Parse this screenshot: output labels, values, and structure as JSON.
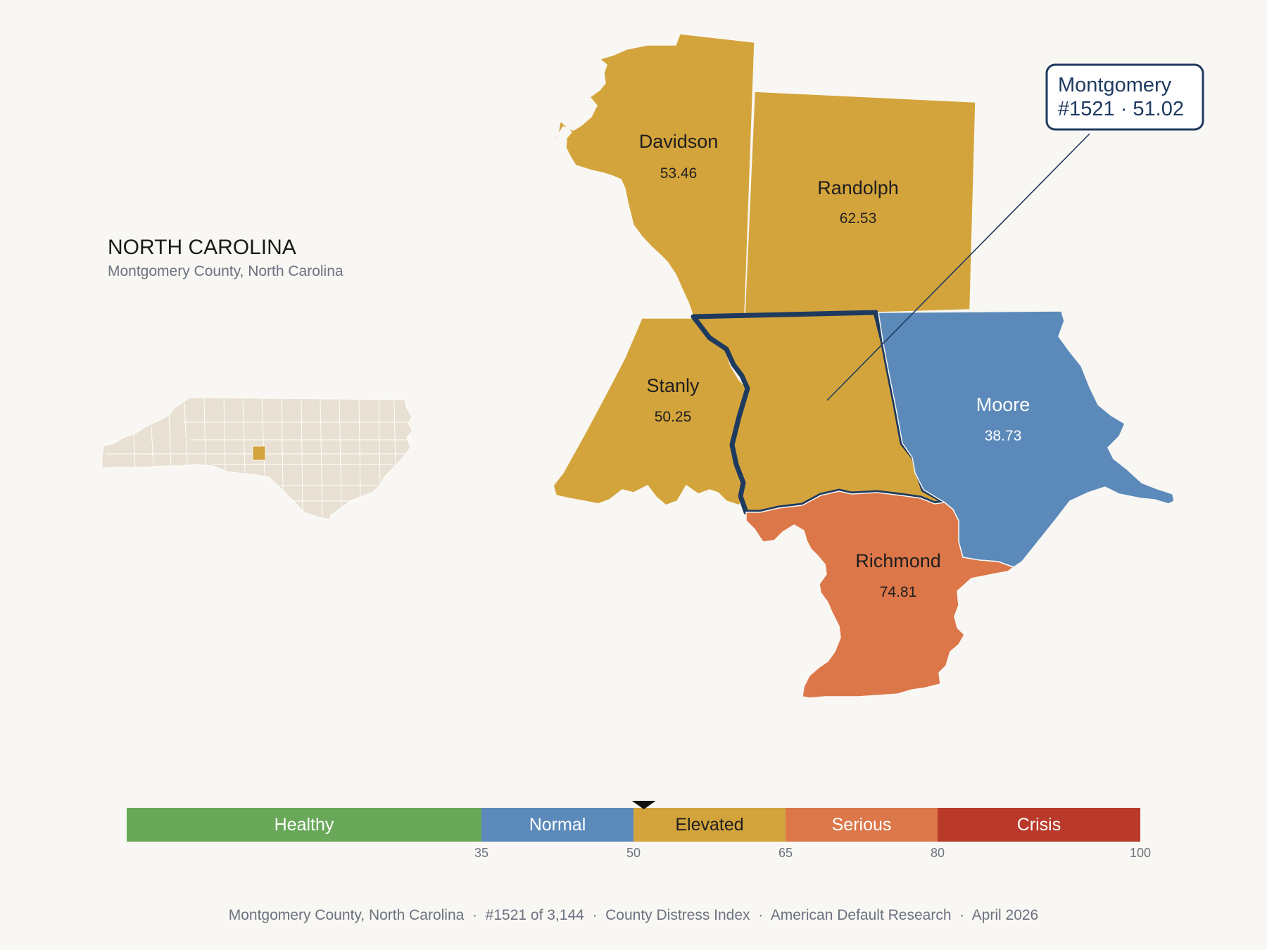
{
  "header": {
    "state": "NORTH CAROLINA",
    "subtitle": "Montgomery County, North Carolina"
  },
  "counties": [
    {
      "id": "davidson",
      "name": "Davidson",
      "value": "53.46",
      "fill": "#d4a43c"
    },
    {
      "id": "randolph",
      "name": "Randolph",
      "value": "62.53",
      "fill": "#d4a43c"
    },
    {
      "id": "stanly",
      "name": "Stanly",
      "value": "50.25",
      "fill": "#d4a43c"
    },
    {
      "id": "montgomery",
      "name": "Montgomery",
      "value": "51.02",
      "fill": "#d4a43c"
    },
    {
      "id": "moore",
      "name": "Moore",
      "value": "38.73",
      "fill": "#5b8aba"
    },
    {
      "id": "richmond",
      "name": "Richmond",
      "value": "74.81",
      "fill": "#dc7749"
    }
  ],
  "callout": {
    "line1": "Montgomery",
    "line2": "#1521 · 51.02"
  },
  "legend": {
    "min": 0,
    "max": 100,
    "marker_value": 51.02,
    "bands": [
      {
        "label": "Healthy",
        "from": 0,
        "to": 35,
        "color": "#68a858",
        "text_color": "#ffffff"
      },
      {
        "label": "Normal",
        "from": 35,
        "to": 50,
        "color": "#5b8aba",
        "text_color": "#ffffff"
      },
      {
        "label": "Elevated",
        "from": 50,
        "to": 65,
        "color": "#d4a43c",
        "text_color": "#1f1f1f"
      },
      {
        "label": "Serious",
        "from": 65,
        "to": 80,
        "color": "#dc7749",
        "text_color": "#ffffff"
      },
      {
        "label": "Crisis",
        "from": 80,
        "to": 100,
        "color": "#b93a2b",
        "text_color": "#ffffff"
      }
    ],
    "ticks": [
      "35",
      "50",
      "65",
      "80",
      "100"
    ]
  },
  "footer": {
    "text": "Montgomery County, North Carolina  ·  #1521 of 3,144  ·  County Distress Index  ·  American Default Research  ·  April 2026"
  },
  "colors": {
    "highlight_outline": "#1e3a5f",
    "inset_state_fill": "#e8e1d3",
    "inset_highlight": "#d4a43c"
  }
}
